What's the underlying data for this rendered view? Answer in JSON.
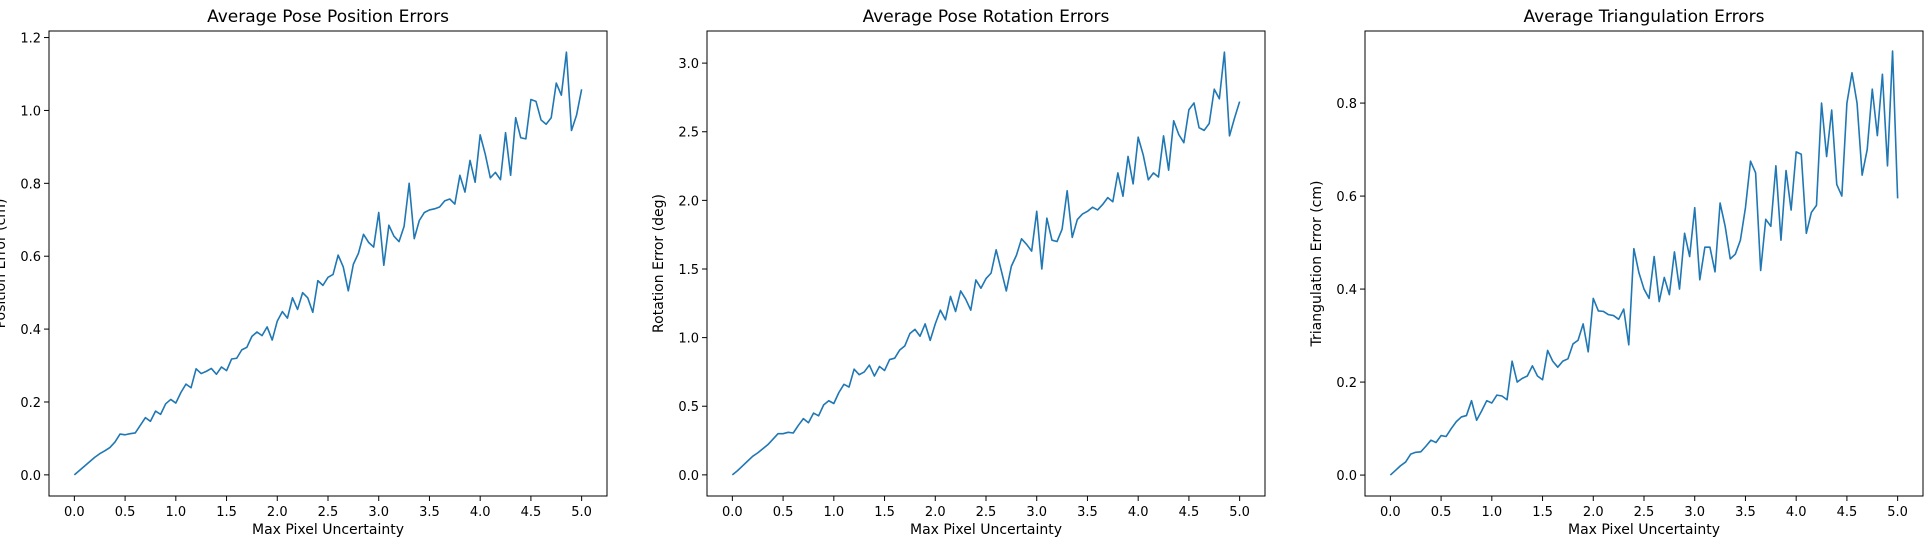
{
  "chart_data": [
    {
      "type": "line",
      "title": "Average Pose Position Errors",
      "xlabel": "Max Pixel Uncertainty",
      "ylabel": "Position Error (cm)",
      "xlim": [
        -0.25,
        5.25
      ],
      "ylim": [
        -0.058,
        1.218
      ],
      "xticks": [
        0.0,
        0.5,
        1.0,
        1.5,
        2.0,
        2.5,
        3.0,
        3.5,
        4.0,
        4.5,
        5.0
      ],
      "xtick_labels": [
        "0.0",
        "0.5",
        "1.0",
        "1.5",
        "2.0",
        "2.5",
        "3.0",
        "3.5",
        "4.0",
        "4.5",
        "5.0"
      ],
      "yticks": [
        0.0,
        0.2,
        0.4,
        0.6,
        0.8,
        1.0,
        1.2
      ],
      "ytick_labels": [
        "0.0",
        "0.2",
        "0.4",
        "0.6",
        "0.8",
        "1.0",
        "1.2"
      ],
      "grid": false,
      "color": "#1f77b4",
      "x_start": 0.0,
      "x_step": 0.05,
      "values": [
        0.0,
        0.012,
        0.024,
        0.036,
        0.048,
        0.058,
        0.066,
        0.075,
        0.09,
        0.112,
        0.11,
        0.113,
        0.115,
        0.136,
        0.157,
        0.147,
        0.175,
        0.166,
        0.195,
        0.207,
        0.197,
        0.226,
        0.249,
        0.239,
        0.291,
        0.278,
        0.284,
        0.292,
        0.276,
        0.296,
        0.286,
        0.318,
        0.32,
        0.343,
        0.35,
        0.38,
        0.392,
        0.382,
        0.406,
        0.37,
        0.422,
        0.448,
        0.43,
        0.486,
        0.454,
        0.5,
        0.486,
        0.446,
        0.533,
        0.52,
        0.542,
        0.55,
        0.603,
        0.571,
        0.505,
        0.578,
        0.608,
        0.66,
        0.638,
        0.625,
        0.72,
        0.575,
        0.685,
        0.655,
        0.64,
        0.682,
        0.8,
        0.648,
        0.698,
        0.72,
        0.727,
        0.73,
        0.735,
        0.752,
        0.757,
        0.743,
        0.822,
        0.776,
        0.863,
        0.803,
        0.933,
        0.88,
        0.815,
        0.83,
        0.81,
        0.939,
        0.822,
        0.98,
        0.925,
        0.922,
        1.03,
        1.025,
        0.974,
        0.962,
        0.98,
        1.075,
        1.042,
        1.16,
        0.945,
        0.987,
        1.058
      ]
    },
    {
      "type": "line",
      "title": "Average Pose Rotation Errors",
      "xlabel": "Max Pixel Uncertainty",
      "ylabel": "Rotation Error (deg)",
      "xlim": [
        -0.25,
        5.25
      ],
      "ylim": [
        -0.154,
        3.234
      ],
      "xticks": [
        0.0,
        0.5,
        1.0,
        1.5,
        2.0,
        2.5,
        3.0,
        3.5,
        4.0,
        4.5,
        5.0
      ],
      "xtick_labels": [
        "0.0",
        "0.5",
        "1.0",
        "1.5",
        "2.0",
        "2.5",
        "3.0",
        "3.5",
        "4.0",
        "4.5",
        "5.0"
      ],
      "yticks": [
        0.0,
        0.5,
        1.0,
        1.5,
        2.0,
        2.5,
        3.0
      ],
      "ytick_labels": [
        "0.0",
        "0.5",
        "1.0",
        "1.5",
        "2.0",
        "2.5",
        "3.0"
      ],
      "grid": false,
      "color": "#1f77b4",
      "x_start": 0.0,
      "x_step": 0.05,
      "values": [
        0.0,
        0.03,
        0.065,
        0.1,
        0.135,
        0.16,
        0.19,
        0.22,
        0.26,
        0.3,
        0.3,
        0.31,
        0.305,
        0.36,
        0.41,
        0.38,
        0.45,
        0.43,
        0.51,
        0.54,
        0.52,
        0.6,
        0.66,
        0.64,
        0.77,
        0.73,
        0.75,
        0.8,
        0.72,
        0.79,
        0.76,
        0.84,
        0.85,
        0.91,
        0.94,
        1.03,
        1.06,
        1.01,
        1.1,
        0.98,
        1.1,
        1.2,
        1.13,
        1.3,
        1.19,
        1.34,
        1.28,
        1.2,
        1.42,
        1.36,
        1.43,
        1.47,
        1.64,
        1.49,
        1.34,
        1.52,
        1.6,
        1.72,
        1.68,
        1.63,
        1.92,
        1.5,
        1.87,
        1.71,
        1.7,
        1.79,
        2.07,
        1.73,
        1.86,
        1.9,
        1.92,
        1.95,
        1.93,
        1.97,
        2.02,
        1.99,
        2.2,
        2.03,
        2.32,
        2.12,
        2.46,
        2.33,
        2.15,
        2.2,
        2.17,
        2.47,
        2.22,
        2.58,
        2.48,
        2.42,
        2.66,
        2.71,
        2.53,
        2.51,
        2.56,
        2.81,
        2.74,
        3.08,
        2.47,
        2.6,
        2.72
      ]
    },
    {
      "type": "line",
      "title": "Average Triangulation Errors",
      "xlabel": "Max Pixel Uncertainty",
      "ylabel": "Triangulation Error (cm)",
      "xlim": [
        -0.25,
        5.25
      ],
      "ylim": [
        -0.045,
        0.955
      ],
      "xticks": [
        0.0,
        0.5,
        1.0,
        1.5,
        2.0,
        2.5,
        3.0,
        3.5,
        4.0,
        4.5,
        5.0
      ],
      "xtick_labels": [
        "0.0",
        "0.5",
        "1.0",
        "1.5",
        "2.0",
        "2.5",
        "3.0",
        "3.5",
        "4.0",
        "4.5",
        "5.0"
      ],
      "yticks": [
        0.0,
        0.2,
        0.4,
        0.6,
        0.8
      ],
      "ytick_labels": [
        "0.0",
        "0.2",
        "0.4",
        "0.6",
        "0.8"
      ],
      "grid": false,
      "color": "#1f77b4",
      "x_start": 0.0,
      "x_step": 0.05,
      "values": [
        0.0,
        0.01,
        0.02,
        0.028,
        0.045,
        0.049,
        0.05,
        0.062,
        0.075,
        0.07,
        0.085,
        0.083,
        0.1,
        0.115,
        0.125,
        0.128,
        0.16,
        0.118,
        0.138,
        0.16,
        0.155,
        0.172,
        0.17,
        0.162,
        0.245,
        0.2,
        0.208,
        0.213,
        0.235,
        0.213,
        0.205,
        0.268,
        0.245,
        0.232,
        0.245,
        0.25,
        0.282,
        0.29,
        0.325,
        0.265,
        0.38,
        0.353,
        0.352,
        0.345,
        0.343,
        0.335,
        0.357,
        0.28,
        0.487,
        0.435,
        0.4,
        0.38,
        0.47,
        0.373,
        0.425,
        0.388,
        0.48,
        0.4,
        0.52,
        0.47,
        0.575,
        0.42,
        0.49,
        0.49,
        0.437,
        0.585,
        0.535,
        0.465,
        0.475,
        0.505,
        0.575,
        0.675,
        0.65,
        0.44,
        0.55,
        0.535,
        0.665,
        0.505,
        0.655,
        0.57,
        0.695,
        0.69,
        0.52,
        0.565,
        0.58,
        0.8,
        0.685,
        0.785,
        0.625,
        0.6,
        0.8,
        0.865,
        0.8,
        0.645,
        0.7,
        0.83,
        0.73,
        0.862,
        0.665,
        0.912,
        0.595
      ]
    }
  ]
}
